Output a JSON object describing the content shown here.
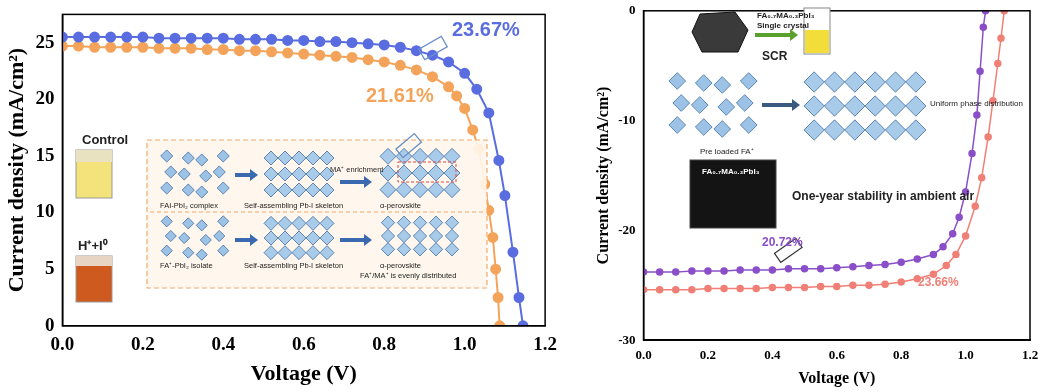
{
  "chart_data": [
    {
      "type": "line",
      "x_label": "Voltage (V)",
      "y_label": "Current density (mA/cm²)",
      "xlim": [
        0,
        1.2
      ],
      "ylim": [
        0,
        27.5
      ],
      "xticks": [
        {
          "value": 0,
          "label": "0.0"
        },
        {
          "value": 0.2,
          "label": "0.2"
        },
        {
          "value": 0.4,
          "label": "0.4"
        },
        {
          "value": 0.6,
          "label": "0.6"
        },
        {
          "value": 0.8,
          "label": "0.8"
        },
        {
          "value": 1,
          "label": "1.0"
        },
        {
          "value": 1.2,
          "label": "1.2"
        }
      ],
      "yticks": [
        0,
        5,
        10,
        15,
        20,
        25
      ],
      "grid": false,
      "series": [
        {
          "name": "23.67%",
          "color": "#5a6de0",
          "marker": "circle",
          "line_style": "solid",
          "x": [
            0,
            0.04,
            0.08,
            0.12,
            0.16,
            0.2,
            0.24,
            0.28,
            0.32,
            0.36,
            0.4,
            0.44,
            0.48,
            0.52,
            0.56,
            0.6,
            0.64,
            0.68,
            0.72,
            0.76,
            0.8,
            0.84,
            0.88,
            0.92,
            0.96,
            1.0,
            1.03,
            1.06,
            1.085,
            1.1,
            1.12,
            1.135,
            1.145
          ],
          "values": [
            25.5,
            25.5,
            25.5,
            25.5,
            25.5,
            25.5,
            25.4,
            25.4,
            25.4,
            25.4,
            25.4,
            25.3,
            25.3,
            25.3,
            25.2,
            25.2,
            25.1,
            25.1,
            25.0,
            24.9,
            24.8,
            24.6,
            24.3,
            23.9,
            23.3,
            22.3,
            20.9,
            18.8,
            14.6,
            11.5,
            6.5,
            2.5,
            0
          ]
        },
        {
          "name": "21.61%",
          "color": "#f4a45a",
          "marker": "circle",
          "line_style": "solid",
          "x": [
            0,
            0.04,
            0.08,
            0.12,
            0.16,
            0.2,
            0.24,
            0.28,
            0.32,
            0.36,
            0.4,
            0.44,
            0.48,
            0.52,
            0.56,
            0.6,
            0.64,
            0.68,
            0.72,
            0.76,
            0.8,
            0.84,
            0.88,
            0.92,
            0.96,
            0.98,
            1.0,
            1.02,
            1.035,
            1.05,
            1.06,
            1.07,
            1.077,
            1.083,
            1.087
          ],
          "values": [
            24.7,
            24.7,
            24.6,
            24.6,
            24.6,
            24.6,
            24.5,
            24.5,
            24.5,
            24.4,
            24.4,
            24.3,
            24.3,
            24.2,
            24.1,
            24.0,
            23.9,
            23.8,
            23.7,
            23.5,
            23.3,
            23.0,
            22.6,
            22.0,
            21.1,
            20.3,
            19.2,
            17.3,
            15.6,
            12.5,
            10.2,
            7.8,
            5,
            2.5,
            0
          ]
        }
      ],
      "annotations": [
        "Control",
        "H⁺+I⁰",
        "FAI-PbI₂ complex",
        "Self-assembling Pb-I skeleton",
        "α-perovskite",
        "MA⁺ enrichment",
        "FA⁺-PbI₂ isolate",
        "Self-assembling Pb-I skeleton",
        "α-perovskite",
        "FA⁺/MA⁺ is evenly distributed"
      ]
    },
    {
      "type": "line",
      "x_label": "Voltage (V)",
      "y_label": "Current density (mA/cm²)",
      "xlim": [
        0,
        1.2
      ],
      "ylim": [
        -30,
        0
      ],
      "xticks": [
        {
          "value": 0,
          "label": "0.0"
        },
        {
          "value": 0.2,
          "label": "0.2"
        },
        {
          "value": 0.4,
          "label": "0.4"
        },
        {
          "value": 0.6,
          "label": "0.6"
        },
        {
          "value": 0.8,
          "label": "0.8"
        },
        {
          "value": 1,
          "label": "1.0"
        },
        {
          "value": 1.2,
          "label": "1.2"
        }
      ],
      "yticks": [
        -30,
        -20,
        -10,
        0
      ],
      "grid": false,
      "series": [
        {
          "name": "20.72%",
          "color": "#8a4fc8",
          "marker": "circle",
          "line_style": "solid",
          "x": [
            0,
            0.05,
            0.1,
            0.15,
            0.2,
            0.25,
            0.3,
            0.35,
            0.4,
            0.45,
            0.5,
            0.55,
            0.6,
            0.65,
            0.7,
            0.75,
            0.8,
            0.85,
            0.9,
            0.93,
            0.96,
            0.98,
            1.0,
            1.02,
            1.035,
            1.045,
            1.055,
            1.062
          ],
          "values": [
            -23.8,
            -23.8,
            -23.8,
            -23.7,
            -23.7,
            -23.7,
            -23.6,
            -23.6,
            -23.6,
            -23.5,
            -23.5,
            -23.5,
            -23.4,
            -23.3,
            -23.2,
            -23.1,
            -22.9,
            -22.6,
            -22.2,
            -21.5,
            -20.3,
            -18.8,
            -16.5,
            -13,
            -9.5,
            -5.5,
            -1.5,
            0
          ]
        },
        {
          "name": "23.66%",
          "color": "#f07f76",
          "marker": "circle",
          "line_style": "solid",
          "x": [
            0,
            0.05,
            0.1,
            0.15,
            0.2,
            0.25,
            0.3,
            0.35,
            0.4,
            0.45,
            0.5,
            0.55,
            0.6,
            0.65,
            0.7,
            0.75,
            0.8,
            0.85,
            0.9,
            0.94,
            0.97,
            1.0,
            1.03,
            1.05,
            1.07,
            1.085,
            1.1,
            1.11,
            1.12
          ],
          "values": [
            -25.4,
            -25.4,
            -25.4,
            -25.4,
            -25.3,
            -25.3,
            -25.3,
            -25.3,
            -25.2,
            -25.2,
            -25.2,
            -25.1,
            -25.1,
            -25.0,
            -25.0,
            -24.9,
            -24.7,
            -24.4,
            -24.0,
            -23.2,
            -22.2,
            -20.5,
            -17.8,
            -15.2,
            -11.5,
            -8.2,
            -4.8,
            -2.5,
            0
          ]
        }
      ],
      "annotations": [
        "FA₀.₇MA₀.₃PbI₃",
        "Single crystal",
        "SCR",
        "Pre loaded FA⁺",
        "Uniform phase distribution",
        "FA₀.₇MA₀.₃PbI₃",
        "One-year stability in ambient air"
      ]
    }
  ]
}
